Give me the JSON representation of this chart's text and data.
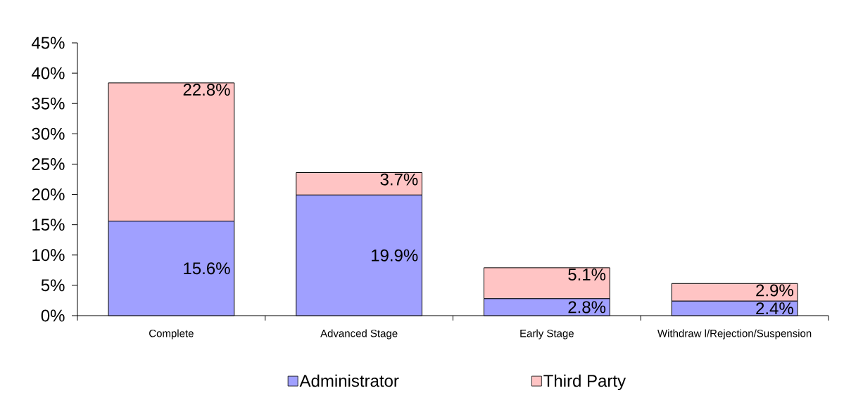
{
  "chart_data": {
    "type": "bar",
    "stacked": true,
    "categories": [
      "Complete",
      "Advanced Stage",
      "Early Stage",
      "Withdraw l/Rejection/Suspension"
    ],
    "series": [
      {
        "name": "Administrator",
        "color": "#a0a0ff",
        "values": [
          15.6,
          19.9,
          2.8,
          2.4
        ],
        "value_labels": [
          "15.6%",
          "19.9%",
          "2.8%",
          "2.4%"
        ]
      },
      {
        "name": "Third Party",
        "color": "#ffc4c4",
        "values": [
          22.8,
          3.7,
          5.1,
          2.9
        ],
        "value_labels": [
          "22.8%",
          "3.7%",
          "5.1%",
          "2.9%"
        ]
      }
    ],
    "ylim": [
      0,
      45
    ],
    "yticks": [
      {
        "value": 0,
        "label": "0%"
      },
      {
        "value": 5,
        "label": "5%"
      },
      {
        "value": 10,
        "label": "10%"
      },
      {
        "value": 15,
        "label": "15%"
      },
      {
        "value": 20,
        "label": "20%"
      },
      {
        "value": 25,
        "label": "25%"
      },
      {
        "value": 30,
        "label": "30%"
      },
      {
        "value": 35,
        "label": "35%"
      },
      {
        "value": 40,
        "label": "40%"
      },
      {
        "value": 45,
        "label": "45%"
      }
    ],
    "legend": "bottom"
  }
}
